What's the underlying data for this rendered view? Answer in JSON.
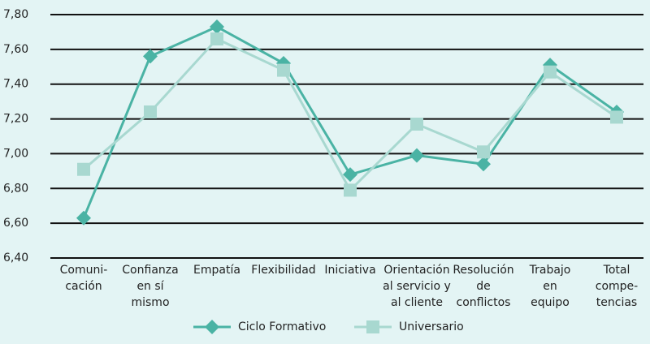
{
  "chart_data": {
    "type": "line",
    "categories": [
      "Comuni-\ncación",
      "Confianza\nen sí\nmismo",
      "Empatía",
      "Flexibilidad",
      "Iniciativa",
      "Orientación\nal servicio y\nal cliente",
      "Resolución\nde\nconflictos",
      "Trabajo\nen\nequipo",
      "Total\ncompe-\ntencias"
    ],
    "series": [
      {
        "name": "Ciclo Formativo",
        "color": "#4ab3a4",
        "marker": "diamond",
        "values": [
          6.63,
          7.56,
          7.73,
          7.52,
          6.88,
          6.99,
          6.94,
          7.51,
          7.24
        ]
      },
      {
        "name": "Universario",
        "color": "#a8d8d0",
        "marker": "square",
        "values": [
          6.91,
          7.24,
          7.66,
          7.48,
          6.79,
          7.17,
          7.01,
          7.47,
          7.21
        ]
      }
    ],
    "ylim": [
      6.4,
      7.8
    ],
    "yticks": [
      {
        "value": 6.4,
        "label": "6,40"
      },
      {
        "value": 6.6,
        "label": "6,60"
      },
      {
        "value": 6.8,
        "label": "6,80"
      },
      {
        "value": 7.0,
        "label": "7,00"
      },
      {
        "value": 7.2,
        "label": "7,20"
      },
      {
        "value": 7.4,
        "label": "7,40"
      },
      {
        "value": 7.6,
        "label": "7,60"
      },
      {
        "value": 7.8,
        "label": "7,80"
      }
    ],
    "grid": true,
    "legend": "bottom"
  }
}
